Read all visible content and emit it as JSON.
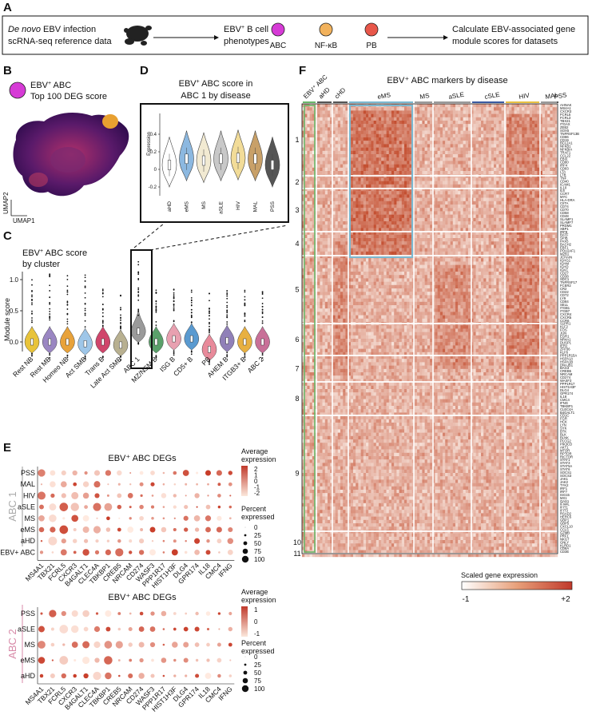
{
  "panels": {
    "A": {
      "letter": "A",
      "box_line1_italic": "De novo",
      "box_line1_rest": " EBV infection",
      "box_line2": "scRNA-seq reference data",
      "phenotypes_line1": "EBV",
      "phenotypes_sup": "+",
      "phenotypes_line1b": " B cell",
      "phenotypes_line2": "phenotypes",
      "types": [
        {
          "label": "ABC",
          "color": "#d63bd6"
        },
        {
          "label": "NF-κB",
          "color": "#f2b25c"
        },
        {
          "label": "PB",
          "color": "#e8574a"
        }
      ],
      "calc_line1": "Calculate EBV-associated gene",
      "calc_line2": "module scores for datasets"
    },
    "B": {
      "letter": "B",
      "legend_line1": "EBV",
      "legend_sup": "+",
      "legend_line1b": " ABC",
      "legend_line2": "Top 100 DEG score",
      "legend_color": "#d63bd6",
      "ylabel": "UMAP2",
      "xlabel": "UMAP1"
    },
    "C": {
      "letter": "C",
      "title_line1": "EBV",
      "title_sup": "+",
      "title_line1b": " ABC score",
      "title_line2": "by cluster",
      "ylabel": "Module score",
      "yticks": [
        "0.0",
        "0.5",
        "1.0"
      ]
    },
    "D": {
      "letter": "D",
      "title_line1": "EBV",
      "title_sup": "+",
      "title_line1b": " ABC score in",
      "title_line2": "ABC 1 by disease",
      "ylabel": "Expression",
      "yticks": [
        "-0.2",
        "0",
        "0.2",
        "0.4"
      ]
    },
    "E": {
      "letter": "E",
      "abc1_label": "ABC 1",
      "abc2_label": "ABC 2",
      "title1": "EBV⁺ ABC DEGs",
      "title2": "EBV⁺ ABC DEGs",
      "avg_expr_label1": "Average",
      "avg_expr_label2": "expression",
      "pct_label1": "Percent",
      "pct_label2": "expressed",
      "avg_ticks1": [
        "2",
        "1",
        "0",
        "-1",
        "-2"
      ],
      "avg_ticks2": [
        "1",
        "0",
        "-1"
      ],
      "pct_ticks1": [
        "0",
        "25",
        "50",
        "75",
        "100"
      ],
      "pct_ticks2": [
        "0",
        "25",
        "50",
        "75",
        "100"
      ]
    },
    "F": {
      "letter": "F",
      "title": "EBV⁺ ABC markers by disease",
      "scale_label": "Scaled gene expression",
      "scale_min": "-1",
      "scale_max": "+2",
      "col_groups": [
        "EBV⁺ ABC",
        "aHD",
        "cHD",
        "eMS",
        "MS",
        "aSLE",
        "cSLE",
        "HIV",
        "MAL",
        "PSS"
      ],
      "row_clusters": [
        "1",
        "2",
        "3",
        "4",
        "5",
        "6",
        "7",
        "8",
        "9",
        "10",
        "11"
      ],
      "gene_labels": [
        "AHNAK",
        "MS4A1",
        "CXCR3",
        "FCRL5",
        "FCRL3",
        "TBX21",
        "ITGAX",
        "ZEB2",
        "SOX5",
        "TNFRSF13B",
        "CD86",
        "CD19",
        "BCL2A1",
        "NFKB1",
        "NFKBIA",
        "TRAF1",
        "CCL22",
        "EBI3",
        "CD80",
        "IRF4",
        "CD83",
        "LTA",
        "LTB",
        "TNF",
        "CD40",
        "ICAM1",
        "IL10",
        "IL6",
        "CCR7",
        "MYC",
        "HLA-DRA",
        "CIITA",
        "CD74",
        "CD70",
        "CD58",
        "CD48",
        "SLAMF1",
        "SLAMF7",
        "PRDM1",
        "XBP1",
        "IRF8",
        "BATF",
        "SPIB",
        "PAX5",
        "BACH2",
        "EBF1",
        "POU2AF1",
        "MZB1",
        "JCHAIN",
        "IGHG1",
        "IGHM",
        "IGHD",
        "IGKC",
        "CD27",
        "CD38",
        "SDC1",
        "TNFRSF17",
        "FCER2",
        "CR2",
        "CD22",
        "CD72",
        "LY9",
        "CD84",
        "SELL",
        "ITGB1",
        "ITGB7",
        "CXCR4",
        "CXCR5",
        "CCR6",
        "S1PR1",
        "KLF2",
        "FOS",
        "JUN",
        "EGR1",
        "NR4A1",
        "DUSP1",
        "IER2",
        "ZFP36",
        "KLF6",
        "PPP1R15A",
        "HSPA1A",
        "HSPA1B",
        "DNAJB1",
        "BAG3",
        "CREB5",
        "NRCAM",
        "CD274",
        "WASF3",
        "PPP1R17",
        "HIST1H3F",
        "DLG4",
        "GPR174",
        "IL18",
        "CMC4",
        "IFNG",
        "TBKBP1",
        "CLEC4A",
        "B4GALT1",
        "CD1C",
        "FGR",
        "HCK",
        "LYN",
        "SYK",
        "BTK",
        "BLK",
        "BLNK",
        "PLCG2",
        "PIK3CD",
        "AKT1",
        "MTOR",
        "RPTOR",
        "RICTOR",
        "STAT1",
        "STAT3",
        "STAT5A",
        "STAT6",
        "SOCS1",
        "SOCS3",
        "JAK1",
        "JAK2",
        "TYK2",
        "IRF1",
        "IRF7",
        "ISG15",
        "MX1",
        "OAS1",
        "IFI44L",
        "IFIT1",
        "IFIT3",
        "RSAD2",
        "HERC5",
        "GBP1",
        "GBP5",
        "CXCL10",
        "CCL5",
        "GZMB",
        "PRF1",
        "NKG7",
        "GNLY",
        "KLRD1",
        "CD8A",
        "CD3E"
      ]
    }
  },
  "clusters": [
    "Rest NB",
    "Rest MB",
    "Homeo NB",
    "Act SMB",
    "Trans B",
    "Late Act SMB",
    "ABC 1",
    "MZ/NSM B",
    "ISG B",
    "CD5+ B",
    "PB",
    "AHEM B",
    "ITGB3+ B",
    "ABC 2"
  ],
  "cluster_colors": [
    "#e8c33a",
    "#9a86c2",
    "#e8a23a",
    "#9ec6e8",
    "#d0456b",
    "#b8b090",
    "#9a9a9a",
    "#5aa06a",
    "#e8a0b0",
    "#5a9ad0",
    "#e88a9a",
    "#9080b8",
    "#e8b040",
    "#c87098"
  ],
  "cluster_medians": [
    0.0,
    0.0,
    0.0,
    -0.03,
    0.0,
    -0.05,
    0.17,
    0.0,
    0.05,
    0.05,
    -0.12,
    0.02,
    0.0,
    0.0
  ],
  "d_groups": [
    "aHD",
    "eMS",
    "MS",
    "aSLE",
    "HIV",
    "MAL",
    "PSS"
  ],
  "d_colors": [
    "#ffffff",
    "#8cb8e0",
    "#f2ead2",
    "#c8c8c8",
    "#f2dc98",
    "#c8a068",
    "#555555"
  ],
  "d_medians": [
    0.05,
    0.12,
    0.1,
    0.12,
    0.13,
    0.12,
    0.05
  ],
  "e1_genes": [
    "MS4A1",
    "TBX21",
    "FCRL5",
    "CXCR3",
    "B4GALT1",
    "CLEC4A",
    "TBKBP1",
    "CREB5",
    "NRCAM",
    "CD274",
    "WASF3",
    "PPP1R17",
    "HIST1H3F",
    "DLG4",
    "GPR174",
    "IL18",
    "CMC4",
    "IFNG"
  ],
  "e1_rows": [
    "PSS",
    "MAL",
    "HIV",
    "aSLE",
    "MS",
    "eMS",
    "aHD",
    "EBV+ ABC"
  ],
  "e2_genes": [
    "MS4A1",
    "TBX21",
    "FCRL5",
    "CXCR3",
    "B4GALT1",
    "CLEC4A",
    "TBKBP1",
    "CREB5",
    "NRCAM",
    "CD274",
    "WASF3",
    "PPP1R17",
    "HIST1H3F",
    "DLG4",
    "GPR174",
    "IL18",
    "CMC4",
    "IFNG"
  ],
  "e2_rows": [
    "PSS",
    "aSLE",
    "MS",
    "eMS",
    "aHD"
  ]
}
